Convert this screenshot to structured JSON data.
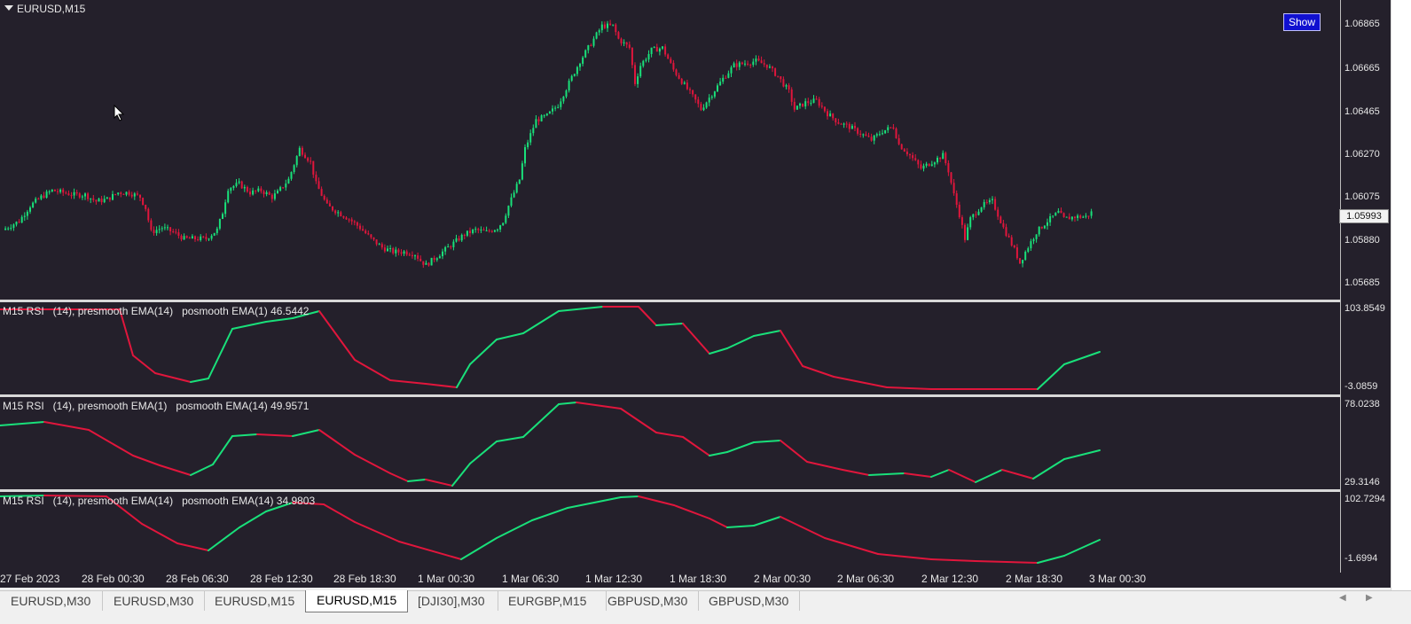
{
  "window": {
    "symbol_title": "EURUSD,M15",
    "show_button": "Show"
  },
  "colors": {
    "background": "#24202b",
    "bull": "#19e07a",
    "bear": "#e0163c",
    "rsi_up": "#19e07a",
    "rsi_down": "#e0163c",
    "text": "#e6e6e6"
  },
  "price_axis": {
    "ticks": [
      "1.06865",
      "1.06665",
      "1.06465",
      "1.06270",
      "1.06075",
      "1.05880",
      "1.05685"
    ],
    "current_price": "1.05993"
  },
  "indicators": [
    {
      "label": "M15 RSI   (14), presmooth EMA(14)   posmooth EMA(1) 46.5442",
      "axis_max": "103.8549",
      "axis_min": "-3.0859"
    },
    {
      "label": "M15 RSI   (14), presmooth EMA(1)   posmooth EMA(14) 49.9571",
      "axis_max": "78.0238",
      "axis_min": "29.3146"
    },
    {
      "label": "M15 RSI   (14), presmooth EMA(14)   posmooth EMA(14) 34.9803",
      "axis_max": "102.7294",
      "axis_min": "-1.6994"
    }
  ],
  "time_axis": [
    "27 Feb 2023",
    "28 Feb 00:30",
    "28 Feb 06:30",
    "28 Feb 12:30",
    "28 Feb 18:30",
    "1 Mar 00:30",
    "1 Mar 06:30",
    "1 Mar 12:30",
    "1 Mar 18:30",
    "2 Mar 00:30",
    "2 Mar 06:30",
    "2 Mar 12:30",
    "2 Mar 18:30",
    "3 Mar 00:30"
  ],
  "tabs": [
    {
      "label": "EURUSD,M30",
      "active": false
    },
    {
      "label": "EURUSD,M30",
      "active": false
    },
    {
      "label": "EURUSD,M15",
      "active": false
    },
    {
      "label": "EURUSD,M15",
      "active": true
    },
    {
      "label": "[DJI30],M30",
      "active": false
    },
    {
      "label": "EURGBP,M15",
      "active": false
    },
    {
      "label": "GBPUSD,M30",
      "active": false
    },
    {
      "label": "GBPUSD,M30",
      "active": false
    }
  ],
  "chart_data": {
    "type": "candlestick",
    "symbol": "EURUSD",
    "timeframe": "M15",
    "close_path": [
      [
        0,
        1.0593
      ],
      [
        6,
        1.0597
      ],
      [
        10,
        1.0604
      ],
      [
        14,
        1.0608
      ],
      [
        18,
        1.0611
      ],
      [
        22,
        1.061
      ],
      [
        26,
        1.0609
      ],
      [
        30,
        1.0609
      ],
      [
        34,
        1.0606
      ],
      [
        38,
        1.0607
      ],
      [
        42,
        1.061
      ],
      [
        46,
        1.061
      ],
      [
        50,
        1.0608
      ],
      [
        52,
        1.0603
      ],
      [
        54,
        1.0592
      ],
      [
        56,
        1.0593
      ],
      [
        58,
        1.0594
      ],
      [
        62,
        1.0592
      ],
      [
        66,
        1.0589
      ],
      [
        70,
        1.0589
      ],
      [
        74,
        1.0589
      ],
      [
        78,
        1.0593
      ],
      [
        80,
        1.0601
      ],
      [
        82,
        1.0612
      ],
      [
        86,
        1.0614
      ],
      [
        90,
        1.061
      ],
      [
        94,
        1.0611
      ],
      [
        98,
        1.0608
      ],
      [
        100,
        1.061
      ],
      [
        104,
        1.0616
      ],
      [
        108,
        1.063
      ],
      [
        112,
        1.0624
      ],
      [
        114,
        1.0614
      ],
      [
        118,
        1.0604
      ],
      [
        122,
        1.0601
      ],
      [
        126,
        1.0598
      ],
      [
        130,
        1.0594
      ],
      [
        134,
        1.0589
      ],
      [
        138,
        1.0585
      ],
      [
        142,
        1.0583
      ],
      [
        146,
        1.0583
      ],
      [
        150,
        1.0582
      ],
      [
        152,
        1.0579
      ],
      [
        154,
        1.0577
      ],
      [
        156,
        1.0579
      ],
      [
        160,
        1.0583
      ],
      [
        164,
        1.0587
      ],
      [
        168,
        1.0591
      ],
      [
        172,
        1.0593
      ],
      [
        176,
        1.0592
      ],
      [
        180,
        1.0594
      ],
      [
        182,
        1.0597
      ],
      [
        184,
        1.0604
      ],
      [
        188,
        1.0616
      ],
      [
        190,
        1.063
      ],
      [
        194,
        1.0643
      ],
      [
        198,
        1.0645
      ],
      [
        202,
        1.065
      ],
      [
        206,
        1.066
      ],
      [
        210,
        1.067
      ],
      [
        214,
        1.0678
      ],
      [
        218,
        1.0686
      ],
      [
        222,
        1.0686
      ],
      [
        224,
        1.068
      ],
      [
        228,
        1.0676
      ],
      [
        230,
        1.066
      ],
      [
        232,
        1.0668
      ],
      [
        236,
        1.0675
      ],
      [
        240,
        1.0676
      ],
      [
        244,
        1.0666
      ],
      [
        248,
        1.0659
      ],
      [
        252,
        1.0652
      ],
      [
        254,
        1.0648
      ],
      [
        258,
        1.0655
      ],
      [
        262,
        1.0662
      ],
      [
        266,
        1.0668
      ],
      [
        270,
        1.0669
      ],
      [
        274,
        1.067
      ],
      [
        278,
        1.0668
      ],
      [
        282,
        1.0663
      ],
      [
        286,
        1.0656
      ],
      [
        288,
        1.0648
      ],
      [
        292,
        1.0651
      ],
      [
        296,
        1.0652
      ],
      [
        300,
        1.0646
      ],
      [
        304,
        1.0642
      ],
      [
        308,
        1.064
      ],
      [
        312,
        1.0637
      ],
      [
        316,
        1.0634
      ],
      [
        320,
        1.0638
      ],
      [
        324,
        1.064
      ],
      [
        326,
        1.0632
      ],
      [
        330,
        1.0627
      ],
      [
        334,
        1.0621
      ],
      [
        338,
        1.0624
      ],
      [
        342,
        1.0627
      ],
      [
        344,
        1.062
      ],
      [
        346,
        1.0609
      ],
      [
        348,
        1.06
      ],
      [
        350,
        1.0589
      ],
      [
        352,
        1.0598
      ],
      [
        356,
        1.0604
      ],
      [
        360,
        1.0606
      ],
      [
        362,
        1.06
      ],
      [
        364,
        1.0594
      ],
      [
        368,
        1.0584
      ],
      [
        370,
        1.0578
      ],
      [
        372,
        1.0583
      ],
      [
        376,
        1.0592
      ],
      [
        380,
        1.0597
      ],
      [
        384,
        1.0601
      ],
      [
        386,
        1.0598
      ],
      [
        390,
        1.0599
      ],
      [
        394,
        1.0599
      ],
      [
        396,
        1.0601
      ]
    ]
  }
}
